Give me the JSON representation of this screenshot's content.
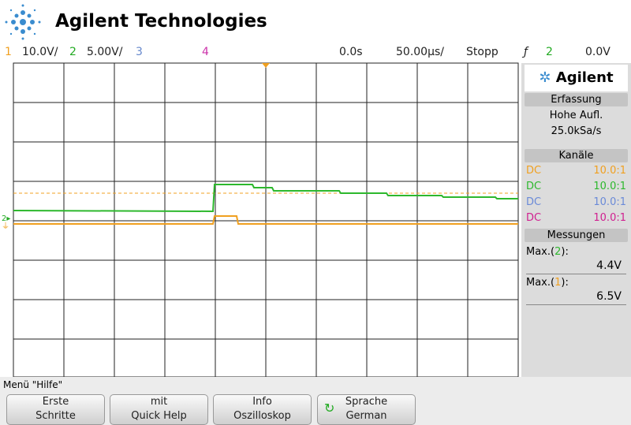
{
  "header": {
    "title": "Agilent Technologies"
  },
  "status": {
    "ch1": "1",
    "ch1_scale": "10.0V/",
    "ch2": "2",
    "ch2_scale": "5.00V/",
    "ch3": "3",
    "ch4": "4",
    "delay": "0.0s",
    "timebase": "50.00µs/",
    "run_state": "Stopp",
    "trigger_source": "2",
    "trigger_level": "0.0V"
  },
  "side_panel": {
    "brand": "Agilent",
    "acquisition": {
      "title": "Erfassung",
      "mode": "Hohe Aufl.",
      "rate": "25.0kSa/s"
    },
    "channels": {
      "title": "Kanäle",
      "rows": [
        [
          "DC",
          "10.0:1"
        ],
        [
          "DC",
          "10.0:1"
        ],
        [
          "DC",
          "10.0:1"
        ],
        [
          "DC",
          "10.0:1"
        ]
      ]
    },
    "measurements": {
      "title": "Messungen",
      "items": [
        {
          "prefix": "Max.(",
          "channel": "2",
          "suffix": "):",
          "value": "4.4V"
        },
        {
          "prefix": "Max.(",
          "channel": "1",
          "suffix": "):",
          "value": "6.5V"
        }
      ]
    }
  },
  "menu": {
    "title": "Menü \"Hilfe\"",
    "buttons": [
      [
        "Erste",
        "Schritte"
      ],
      [
        "mit",
        "Quick Help"
      ],
      [
        "Info",
        "Oszilloskop"
      ],
      [
        "Sprache",
        "German"
      ]
    ]
  }
}
